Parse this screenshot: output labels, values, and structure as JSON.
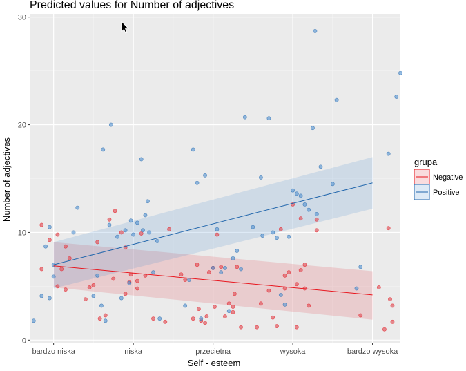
{
  "chart_data": {
    "type": "scatter",
    "title": "Predicted values for Number of adjectives",
    "xlabel": "Self - esteem",
    "ylabel": "Number of adjectives",
    "categories": [
      "bardzo niska",
      "niska",
      "przecietna",
      "wysoka",
      "bardzo wysoka"
    ],
    "xlim": [
      0.7,
      5.35
    ],
    "ylim": [
      -0.3,
      30.3
    ],
    "yticks": [
      0,
      10,
      20,
      30
    ],
    "grid": true,
    "legend": {
      "title": "grupa",
      "position": "right",
      "entries": [
        "Negative",
        "Positive"
      ]
    },
    "series": [
      {
        "name": "Negative",
        "color": "#e8161e",
        "fill": "#e05058",
        "fit": {
          "x": [
            1,
            5
          ],
          "y": [
            6.9,
            4.2
          ]
        },
        "band": {
          "x": [
            1,
            5
          ],
          "lower": [
            4.9,
            1.9
          ],
          "upper": [
            9.1,
            6.4
          ]
        },
        "points": [
          [
            0.85,
            10.7
          ],
          [
            0.85,
            6.6
          ],
          [
            0.95,
            9.3
          ],
          [
            1.05,
            9.8
          ],
          [
            1.05,
            5.0
          ],
          [
            1.1,
            6.6
          ],
          [
            1.15,
            4.7
          ],
          [
            1.15,
            8.7
          ],
          [
            1.2,
            7.6
          ],
          [
            1.4,
            3.8
          ],
          [
            1.45,
            4.9
          ],
          [
            1.5,
            5.1
          ],
          [
            1.55,
            9.1
          ],
          [
            1.58,
            2.0
          ],
          [
            1.65,
            2.3
          ],
          [
            1.7,
            11.2
          ],
          [
            1.75,
            5.7
          ],
          [
            1.77,
            12.0
          ],
          [
            1.85,
            10.0
          ],
          [
            1.9,
            8.6
          ],
          [
            1.9,
            4.3
          ],
          [
            1.95,
            5.4
          ],
          [
            1.97,
            6.1
          ],
          [
            2.05,
            5.5
          ],
          [
            2.05,
            4.8
          ],
          [
            2.1,
            9.9
          ],
          [
            2.15,
            6.0
          ],
          [
            2.25,
            2.0
          ],
          [
            2.4,
            1.7
          ],
          [
            2.45,
            10.3
          ],
          [
            2.6,
            6.1
          ],
          [
            2.65,
            5.6
          ],
          [
            2.75,
            2.0
          ],
          [
            2.8,
            7.0
          ],
          [
            2.82,
            2.9
          ],
          [
            2.85,
            1.8
          ],
          [
            2.9,
            1.6
          ],
          [
            2.92,
            2.2
          ],
          [
            2.95,
            6.3
          ],
          [
            3.0,
            6.7
          ],
          [
            3.02,
            3.1
          ],
          [
            3.05,
            9.8
          ],
          [
            3.1,
            6.8
          ],
          [
            3.15,
            2.2
          ],
          [
            3.2,
            3.4
          ],
          [
            3.25,
            2.6
          ],
          [
            3.25,
            3.1
          ],
          [
            3.27,
            4.3
          ],
          [
            3.3,
            6.8
          ],
          [
            3.35,
            1.2
          ],
          [
            3.55,
            1.2
          ],
          [
            3.6,
            3.4
          ],
          [
            3.7,
            4.6
          ],
          [
            3.75,
            2.1
          ],
          [
            3.8,
            1.3
          ],
          [
            3.85,
            10.3
          ],
          [
            3.9,
            4.8
          ],
          [
            3.9,
            6.0
          ],
          [
            3.95,
            6.3
          ],
          [
            4.0,
            12.6
          ],
          [
            4.05,
            5.2
          ],
          [
            4.1,
            11.3
          ],
          [
            4.1,
            6.5
          ],
          [
            4.15,
            7.0
          ],
          [
            4.15,
            4.8
          ],
          [
            4.2,
            3.2
          ],
          [
            4.3,
            11.2
          ],
          [
            4.3,
            10.2
          ],
          [
            4.05,
            1.2
          ],
          [
            4.85,
            2.3
          ],
          [
            5.08,
            4.9
          ],
          [
            5.15,
            1.0
          ],
          [
            5.2,
            10.4
          ],
          [
            5.22,
            3.8
          ],
          [
            5.25,
            3.2
          ],
          [
            5.25,
            1.7
          ]
        ]
      },
      {
        "name": "Positive",
        "color": "#2166ac",
        "fill": "#5a96d2",
        "fit": {
          "x": [
            1,
            5
          ],
          "y": [
            7.0,
            14.6
          ]
        },
        "band": {
          "x": [
            1,
            5
          ],
          "lower": [
            4.8,
            12.2
          ],
          "upper": [
            9.1,
            17.0
          ]
        },
        "points": [
          [
            0.75,
            1.8
          ],
          [
            0.85,
            4.1
          ],
          [
            0.9,
            8.7
          ],
          [
            0.95,
            10.5
          ],
          [
            0.95,
            3.9
          ],
          [
            1.0,
            5.9
          ],
          [
            1.0,
            7.0
          ],
          [
            1.25,
            10.0
          ],
          [
            1.3,
            12.3
          ],
          [
            1.5,
            4.1
          ],
          [
            1.55,
            6.0
          ],
          [
            1.6,
            3.2
          ],
          [
            1.62,
            17.7
          ],
          [
            1.65,
            1.8
          ],
          [
            1.7,
            10.7
          ],
          [
            1.72,
            20.0
          ],
          [
            1.8,
            9.6
          ],
          [
            1.85,
            3.9
          ],
          [
            1.9,
            10.2
          ],
          [
            1.95,
            5.3
          ],
          [
            1.97,
            11.1
          ],
          [
            2.0,
            9.8
          ],
          [
            2.05,
            10.9
          ],
          [
            2.1,
            16.8
          ],
          [
            2.12,
            10.2
          ],
          [
            2.15,
            11.6
          ],
          [
            2.18,
            12.9
          ],
          [
            2.2,
            10.0
          ],
          [
            2.25,
            6.3
          ],
          [
            2.3,
            9.2
          ],
          [
            2.33,
            2.0
          ],
          [
            2.65,
            3.2
          ],
          [
            2.7,
            5.6
          ],
          [
            2.75,
            17.7
          ],
          [
            2.8,
            14.6
          ],
          [
            2.85,
            2.0
          ],
          [
            2.9,
            15.3
          ],
          [
            3.0,
            6.7
          ],
          [
            3.05,
            10.3
          ],
          [
            3.1,
            6.3
          ],
          [
            3.15,
            6.7
          ],
          [
            3.2,
            2.7
          ],
          [
            3.25,
            7.6
          ],
          [
            3.3,
            8.3
          ],
          [
            3.35,
            6.6
          ],
          [
            3.4,
            20.7
          ],
          [
            3.5,
            10.5
          ],
          [
            3.6,
            15.1
          ],
          [
            3.62,
            9.7
          ],
          [
            3.7,
            20.6
          ],
          [
            3.75,
            10.0
          ],
          [
            3.8,
            9.5
          ],
          [
            3.85,
            4.2
          ],
          [
            3.9,
            3.3
          ],
          [
            3.95,
            9.6
          ],
          [
            4.0,
            13.9
          ],
          [
            4.05,
            13.6
          ],
          [
            4.1,
            13.4
          ],
          [
            4.15,
            12.6
          ],
          [
            4.2,
            12.1
          ],
          [
            4.25,
            19.7
          ],
          [
            4.28,
            28.7
          ],
          [
            4.3,
            11.7
          ],
          [
            4.35,
            16.1
          ],
          [
            4.5,
            14.5
          ],
          [
            4.55,
            22.3
          ],
          [
            4.85,
            6.8
          ],
          [
            4.8,
            4.8
          ],
          [
            5.2,
            17.3
          ],
          [
            5.3,
            22.6
          ],
          [
            5.35,
            24.8
          ]
        ]
      }
    ]
  }
}
